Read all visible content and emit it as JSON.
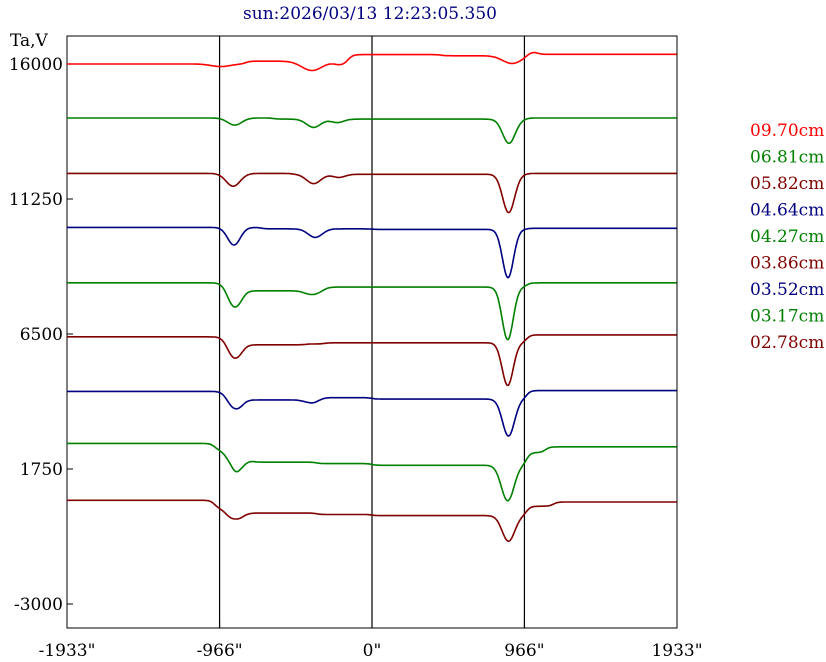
{
  "chart_data": {
    "type": "line",
    "title": "sun:2026/03/13 12:23:05.350",
    "ylabel": "Ta,V",
    "xlabel": "",
    "x_ticks": [
      "-1933\"",
      "-966\"",
      "0\"",
      "966\"",
      "1933\""
    ],
    "x_tick_values": [
      -1933,
      -966,
      0,
      966,
      1933
    ],
    "y_ticks": [
      "16000",
      "11250",
      "6500",
      "1750",
      "-3000"
    ],
    "y_tick_values": [
      16000,
      11250,
      6500,
      1750,
      -3000
    ],
    "xlim": [
      -1933,
      1933
    ],
    "ylim": [
      -3000,
      16900
    ],
    "vertical_lines": [
      -966,
      0,
      966
    ],
    "grid": false,
    "legend_position": "right",
    "colors": {
      "title": "#000080",
      "red": "#ff0000",
      "green": "#008000",
      "maroon": "#800000",
      "navy": "#000080"
    },
    "series": [
      {
        "name": "09.70cm",
        "color": "#ff0000",
        "baseline": 16000,
        "dips": [
          [
            -960,
            60,
            90
          ],
          [
            -380,
            65,
            330
          ],
          [
            -200,
            40,
            120
          ],
          [
            888,
            60,
            270
          ]
        ],
        "steps": [
          [
            -800,
            100
          ],
          [
            -150,
            230
          ],
          [
            440,
            -40
          ],
          [
            980,
            150
          ],
          [
            1050,
            -100
          ]
        ]
      },
      {
        "name": "06.81cm",
        "color": "#008000",
        "baseline": 14100,
        "dips": [
          [
            -870,
            45,
            250
          ],
          [
            -370,
            45,
            290
          ],
          [
            -220,
            40,
            120
          ],
          [
            868,
            40,
            850
          ]
        ],
        "steps": [
          [
            -620,
            -40
          ],
          [
            980,
            40
          ]
        ]
      },
      {
        "name": "05.82cm",
        "color": "#800000",
        "baseline": 12150,
        "dips": [
          [
            -880,
            45,
            450
          ],
          [
            -370,
            45,
            330
          ],
          [
            -210,
            40,
            110
          ],
          [
            866,
            38,
            1350
          ]
        ],
        "steps": [
          [
            -500,
            -30
          ],
          [
            980,
            30
          ]
        ]
      },
      {
        "name": "04.64cm",
        "color": "#000080",
        "baseline": 10250,
        "dips": [
          [
            -875,
            40,
            620
          ],
          [
            -360,
            45,
            300
          ],
          [
            862,
            35,
            1700
          ]
        ],
        "steps": [
          [
            -700,
            -50
          ],
          [
            0,
            -20
          ],
          [
            980,
            40
          ]
        ]
      },
      {
        "name": "04.27cm",
        "color": "#008000",
        "baseline": 8300,
        "dips": [
          [
            -875,
            40,
            800
          ],
          [
            -370,
            45,
            200
          ],
          [
            860,
            35,
            1850
          ]
        ],
        "steps": [
          [
            -850,
            -280
          ],
          [
            -400,
            80
          ],
          [
            -300,
            50
          ],
          [
            980,
            150
          ]
        ]
      },
      {
        "name": "03.86cm",
        "color": "#800000",
        "baseline": 6400,
        "dips": [
          [
            -875,
            40,
            700
          ],
          [
            860,
            35,
            1500
          ]
        ],
        "steps": [
          [
            -850,
            -280
          ],
          [
            -420,
            30
          ],
          [
            -300,
            40
          ],
          [
            980,
            280
          ]
        ]
      },
      {
        "name": "03.52cm",
        "color": "#000080",
        "baseline": 4480,
        "dips": [
          [
            -875,
            40,
            550
          ],
          [
            -380,
            40,
            180
          ],
          [
            865,
            38,
            1300
          ]
        ],
        "steps": [
          [
            -850,
            -300
          ],
          [
            -420,
            80
          ],
          [
            0,
            -50
          ],
          [
            980,
            300
          ]
        ]
      },
      {
        "name": "03.17cm",
        "color": "#008000",
        "baseline": 2650,
        "dips": [
          [
            -875,
            45,
            500
          ],
          [
            860,
            40,
            1250
          ]
        ],
        "steps": [
          [
            -1000,
            -200
          ],
          [
            -880,
            -400
          ],
          [
            -750,
            -60
          ],
          [
            -350,
            -50
          ],
          [
            0,
            -60
          ],
          [
            980,
            450
          ],
          [
            1100,
            200
          ]
        ]
      },
      {
        "name": "02.78cm",
        "color": "#800000",
        "baseline": 650,
        "dips": [
          [
            -880,
            45,
            380
          ],
          [
            865,
            40,
            900
          ]
        ],
        "steps": [
          [
            -1000,
            -250
          ],
          [
            -850,
            -200
          ],
          [
            -350,
            -50
          ],
          [
            0,
            -40
          ],
          [
            980,
            330
          ],
          [
            1150,
            150
          ]
        ]
      }
    ]
  }
}
